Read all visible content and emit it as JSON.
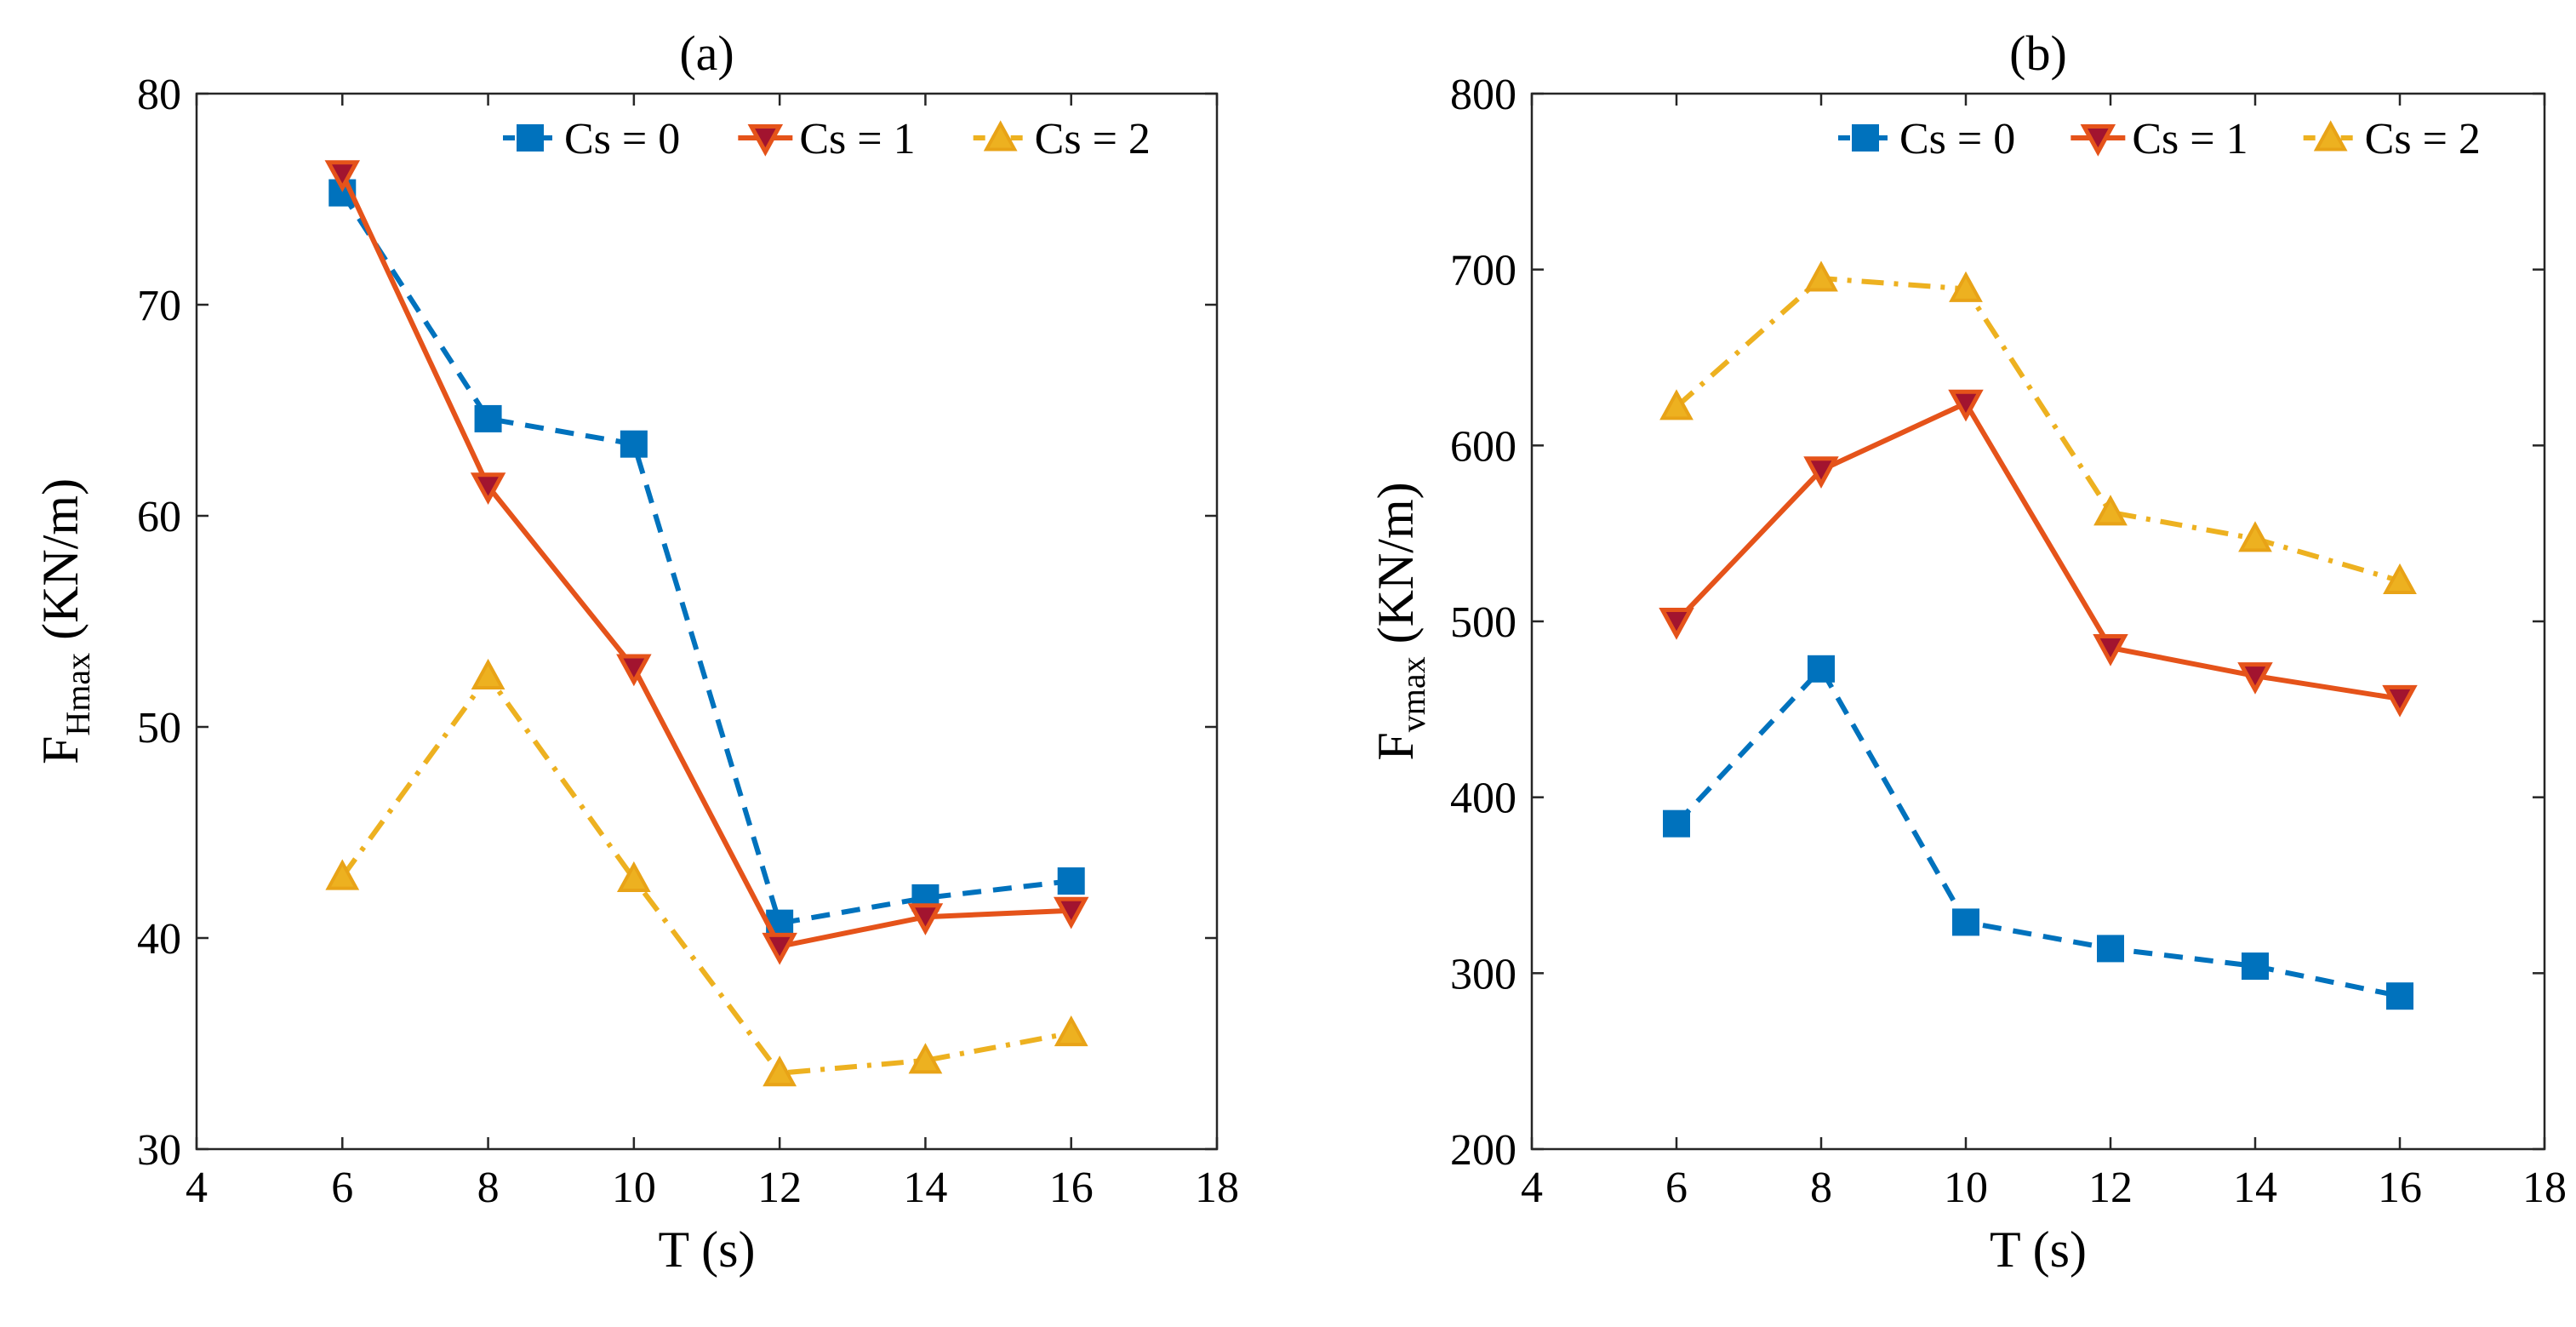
{
  "chart_data": [
    {
      "type": "line",
      "title": "(a)",
      "xlabel": "T (s)",
      "ylabel_main": "F",
      "ylabel_sub": "Hmax",
      "ylabel_unit": " (KN/m)",
      "xlim": [
        4,
        18
      ],
      "ylim": [
        30,
        80
      ],
      "xticks": [
        "4",
        "6",
        "8",
        "10",
        "12",
        "14",
        "16",
        "18"
      ],
      "yticks": [
        "30",
        "40",
        "50",
        "60",
        "70",
        "80"
      ],
      "legend_position": "top-right",
      "x": [
        6,
        8,
        10,
        12,
        14,
        16
      ],
      "series": [
        {
          "name": "Cs = 0",
          "values": [
            75.3,
            64.6,
            63.4,
            40.7,
            41.9,
            42.7
          ],
          "color": "#0072BD",
          "marker": "square",
          "dash": "dashed"
        },
        {
          "name": "Cs = 1",
          "values": [
            76.2,
            61.4,
            52.8,
            39.6,
            41.0,
            41.3
          ],
          "color": "#E5531A",
          "marker": "triangle-down",
          "dash": "solid"
        },
        {
          "name": "Cs = 2",
          "values": [
            42.9,
            52.4,
            42.8,
            33.6,
            34.2,
            35.5
          ],
          "color": "#EDB120",
          "marker": "triangle-up",
          "dash": "dashdot"
        }
      ]
    },
    {
      "type": "line",
      "title": "(b)",
      "xlabel": "T (s)",
      "ylabel_main": "F",
      "ylabel_sub": "vmax",
      "ylabel_unit": " (KN/m)",
      "xlim": [
        4,
        18
      ],
      "ylim": [
        200,
        800
      ],
      "xticks": [
        "4",
        "6",
        "8",
        "10",
        "12",
        "14",
        "16",
        "18"
      ],
      "yticks": [
        "200",
        "300",
        "400",
        "500",
        "600",
        "700",
        "800"
      ],
      "legend_position": "top-right",
      "x": [
        6,
        8,
        10,
        12,
        14,
        16
      ],
      "series": [
        {
          "name": "Cs = 0",
          "values": [
            385,
            473,
            329,
            314,
            304,
            287
          ],
          "color": "#0072BD",
          "marker": "square",
          "dash": "dashed"
        },
        {
          "name": "Cs = 1",
          "values": [
            500,
            586,
            624,
            485,
            469,
            456
          ],
          "color": "#E5531A",
          "marker": "triangle-down",
          "dash": "solid"
        },
        {
          "name": "Cs = 2",
          "values": [
            622,
            695,
            689,
            562,
            547,
            523
          ],
          "color": "#EDB120",
          "marker": "triangle-up",
          "dash": "dashdot"
        }
      ]
    }
  ]
}
